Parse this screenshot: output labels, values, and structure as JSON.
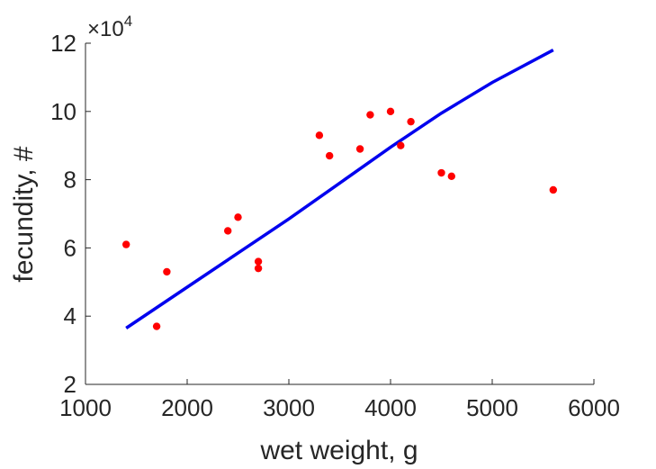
{
  "chart_data": {
    "type": "scatter",
    "xlabel": "wet weight, g",
    "ylabel": "fecundity, #",
    "xlim": [
      1000,
      6000
    ],
    "ylim": [
      2,
      12
    ],
    "x_ticks": [
      1000,
      2000,
      3000,
      4000,
      5000,
      6000
    ],
    "y_ticks": [
      2,
      4,
      6,
      8,
      10,
      12
    ],
    "y_multiplier": {
      "base": "×10",
      "exponent": "4"
    },
    "grid": false,
    "colors": {
      "points": "#ff0000",
      "fit_line": "#0000ee",
      "axes": "#262626"
    },
    "series": [
      {
        "type": "scatter",
        "x": [
          1400,
          1700,
          1800,
          2400,
          2500,
          2700,
          2700,
          3300,
          3400,
          3700,
          3800,
          4000,
          4100,
          4200,
          4500,
          4600,
          5600
        ],
        "y": [
          6.1,
          3.7,
          5.3,
          6.5,
          6.9,
          5.6,
          5.4,
          9.3,
          8.7,
          8.9,
          9.9,
          10.0,
          9.0,
          9.7,
          8.2,
          8.1,
          7.7
        ]
      },
      {
        "type": "line",
        "x": [
          1400,
          2000,
          2500,
          3000,
          3500,
          4000,
          4500,
          5000,
          5600
        ],
        "y": [
          3.65,
          4.85,
          5.85,
          6.85,
          7.9,
          8.95,
          9.95,
          10.85,
          11.8
        ]
      }
    ]
  }
}
